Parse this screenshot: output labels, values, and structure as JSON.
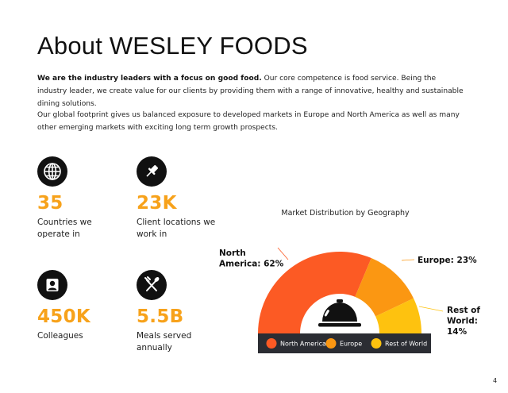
{
  "title": "About WESLEY FOODS",
  "intro": {
    "bold": "We are the industry leaders with a focus on good food.",
    "text": " Our core competence is food service. Being the industry leader, we create value for our clients by providing them with a range of innovative, healthy and sustainable dining solutions."
  },
  "footprint": "Our global footprint gives us balanced exposure to developed markets in Europe and North America as well as many other emerging markets with exciting long term growth prospects.",
  "stats": [
    {
      "icon": "globe-icon",
      "value": "35",
      "label": "Countries we operate in"
    },
    {
      "icon": "pin-icon",
      "value": "23K",
      "label": "Client locations we work in"
    },
    {
      "icon": "person-icon",
      "value": "450K",
      "label": "Colleagues"
    },
    {
      "icon": "utensils-icon",
      "value": "5.5B",
      "label": "Meals served annually"
    }
  ],
  "accent_color": "#f7a21b",
  "chart_data": {
    "type": "pie",
    "variant": "semi-donut",
    "title": "Market Distribution by Geography",
    "categories": [
      "North America",
      "Europe",
      "Rest of World"
    ],
    "values": [
      62,
      23,
      14
    ],
    "colors": [
      "#fc5a24",
      "#fb9712",
      "#fec20f"
    ],
    "labels": [
      "North America: 62%",
      "Europe: 23%",
      "Rest of World: 14%"
    ],
    "legend_position": "bottom",
    "center_icon": "service-bell-icon"
  },
  "page_number": "4"
}
